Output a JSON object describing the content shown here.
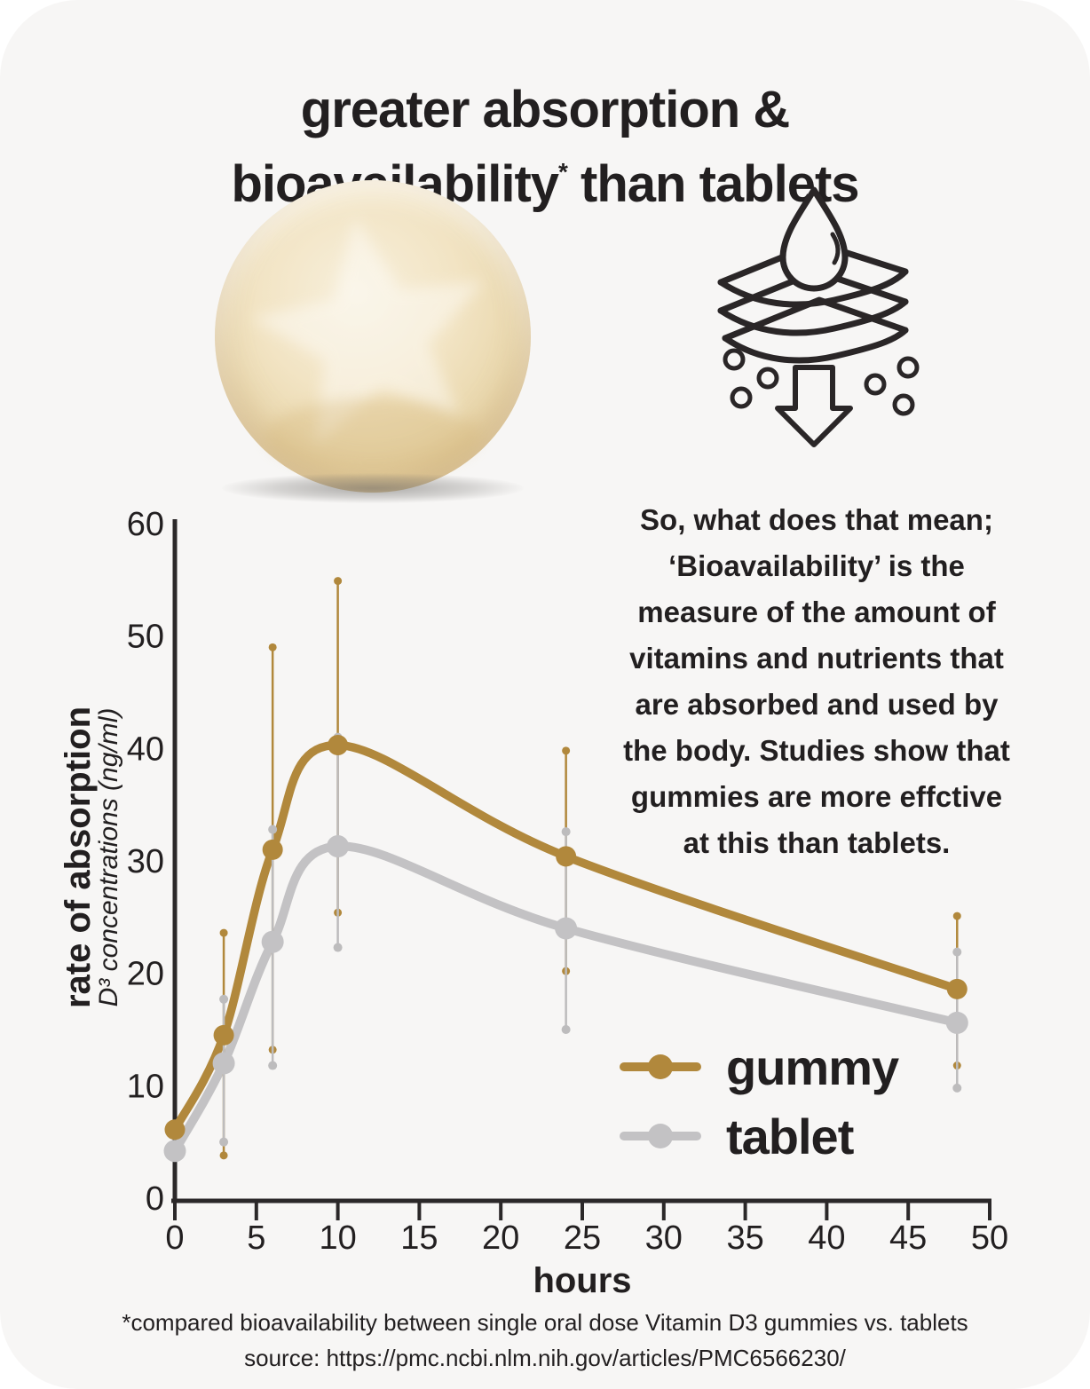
{
  "title": {
    "line1": "greater absorption &",
    "line2_start": "bioavailability",
    "line2_sup": "*",
    "line2_end": " than tablets"
  },
  "explainer": {
    "lines": [
      "So, what does that mean;",
      "‘Bioavailability’ is the",
      "measure of the amount of",
      "vitamins and nutrients that",
      "are absorbed and used by",
      "the body. Studies show that",
      "gummies are more effctive",
      "at this than tablets."
    ]
  },
  "chart_data": {
    "type": "line",
    "x": [
      0,
      3,
      6,
      10,
      24,
      48
    ],
    "xlabel": "hours",
    "ylabel": "rate of absorption",
    "ylabel_sub": "D³ concentrations (ng/ml)",
    "xticks": [
      0,
      5,
      10,
      15,
      20,
      25,
      30,
      35,
      40,
      45,
      50
    ],
    "yticks": [
      0,
      10,
      20,
      30,
      40,
      50,
      60
    ],
    "xlim": [
      0,
      50
    ],
    "ylim": [
      0,
      60
    ],
    "grid": false,
    "legend_position": "lower right",
    "series": [
      {
        "name": "gummy",
        "color": "#b1883c",
        "values": [
          6.1,
          14.5,
          31.0,
          40.3,
          30.4,
          18.6
        ],
        "err_low": [
          null,
          3.8,
          13.2,
          25.4,
          20.2,
          11.8
        ],
        "err_high": [
          null,
          23.6,
          49.0,
          54.9,
          39.8,
          25.1
        ]
      },
      {
        "name": "tablet",
        "color": "#c3c2c4",
        "values": [
          4.2,
          12.0,
          22.8,
          31.3,
          24.0,
          15.6
        ],
        "err_low": [
          null,
          5.0,
          11.8,
          22.3,
          15.0,
          9.8
        ],
        "err_high": [
          null,
          17.7,
          32.8,
          41.0,
          32.6,
          21.9
        ]
      }
    ]
  },
  "footer": {
    "line1": "*compared bioavailability between single oral dose Vitamin D3 gummies vs. tablets",
    "line2": "source: https://pmc.ncbi.nlm.nih.gov/articles/PMC6566230/"
  },
  "colors": {
    "gummy": "#b1883c",
    "tablet": "#c3c2c4",
    "gummy_err": "#b1883c",
    "tablet_err": "#bdbcbd",
    "axis": "#2b2829",
    "text": "#221f20",
    "card_bg": "#f7f6f5"
  }
}
